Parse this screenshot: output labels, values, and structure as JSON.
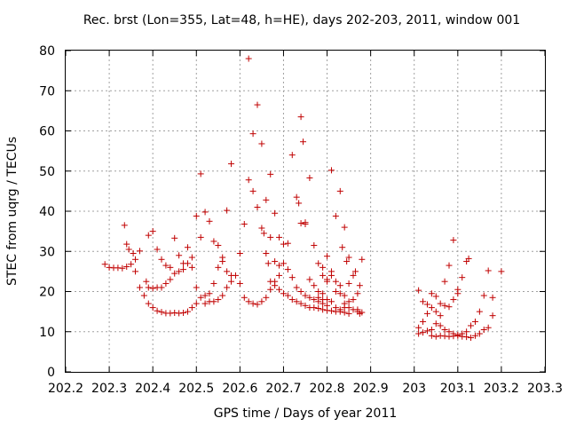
{
  "chart_data": {
    "type": "scatter",
    "title": "Rec. brst (Lon=355, Lat=48, h=HE), days 202-203, 2011, window 001",
    "xlabel": "GPS time / Days of year 2011",
    "ylabel": "STEC from uqrg / TECUs",
    "xlim": [
      202.2,
      203.3
    ],
    "ylim": [
      0,
      80
    ],
    "xticks": [
      "202.2",
      "202.3",
      "202.4",
      "202.5",
      "202.6",
      "202.7",
      "202.8",
      "202.9",
      "203",
      "203.1",
      "203.2",
      "203.3"
    ],
    "yticks": [
      "0",
      "10",
      "20",
      "30",
      "40",
      "50",
      "60",
      "70",
      "80"
    ],
    "grid": true,
    "marker": "plus",
    "color": "#c00000",
    "points": [
      [
        202.29,
        26.8
      ],
      [
        202.3,
        26.0
      ],
      [
        202.31,
        25.9
      ],
      [
        202.32,
        25.9
      ],
      [
        202.33,
        25.8
      ],
      [
        202.34,
        26.2
      ],
      [
        202.35,
        26.8
      ],
      [
        202.36,
        28.0
      ],
      [
        202.37,
        30.1
      ],
      [
        202.335,
        36.5
      ],
      [
        202.34,
        31.8
      ],
      [
        202.345,
        30.5
      ],
      [
        202.355,
        29.5
      ],
      [
        202.36,
        25.0
      ],
      [
        202.37,
        21.0
      ],
      [
        202.38,
        19.0
      ],
      [
        202.39,
        17.0
      ],
      [
        202.4,
        16.0
      ],
      [
        202.41,
        15.2
      ],
      [
        202.42,
        14.9
      ],
      [
        202.43,
        14.6
      ],
      [
        202.44,
        14.6
      ],
      [
        202.45,
        14.7
      ],
      [
        202.46,
        14.6
      ],
      [
        202.47,
        14.7
      ],
      [
        202.48,
        15.0
      ],
      [
        202.49,
        16.0
      ],
      [
        202.5,
        17.0
      ],
      [
        202.51,
        18.5
      ],
      [
        202.52,
        19.0
      ],
      [
        202.385,
        22.5
      ],
      [
        202.39,
        21.0
      ],
      [
        202.4,
        20.8
      ],
      [
        202.41,
        21.0
      ],
      [
        202.42,
        21.0
      ],
      [
        202.43,
        22.0
      ],
      [
        202.44,
        23.0
      ],
      [
        202.45,
        24.5
      ],
      [
        202.46,
        25.0
      ],
      [
        202.47,
        25.5
      ],
      [
        202.48,
        27.0
      ],
      [
        202.49,
        28.5
      ],
      [
        202.5,
        38.8
      ],
      [
        202.51,
        49.3
      ],
      [
        202.39,
        34.0
      ],
      [
        202.4,
        35.0
      ],
      [
        202.41,
        30.5
      ],
      [
        202.42,
        28.0
      ],
      [
        202.43,
        26.5
      ],
      [
        202.44,
        26.0
      ],
      [
        202.45,
        33.3
      ],
      [
        202.46,
        29.0
      ],
      [
        202.47,
        27.0
      ],
      [
        202.48,
        31.0
      ],
      [
        202.49,
        26.0
      ],
      [
        202.5,
        21.0
      ],
      [
        202.51,
        33.5
      ],
      [
        202.52,
        39.8
      ],
      [
        202.53,
        37.5
      ],
      [
        202.54,
        32.5
      ],
      [
        202.55,
        31.5
      ],
      [
        202.56,
        28.5
      ],
      [
        202.57,
        40.2
      ],
      [
        202.58,
        51.8
      ],
      [
        202.52,
        17.0
      ],
      [
        202.53,
        17.5
      ],
      [
        202.54,
        17.5
      ],
      [
        202.55,
        18.0
      ],
      [
        202.56,
        19.0
      ],
      [
        202.57,
        21.0
      ],
      [
        202.58,
        22.5
      ],
      [
        202.59,
        24.0
      ],
      [
        202.6,
        29.5
      ],
      [
        202.61,
        36.8
      ],
      [
        202.62,
        78.0
      ],
      [
        202.63,
        59.3
      ],
      [
        202.64,
        66.5
      ],
      [
        202.65,
        56.8
      ],
      [
        202.53,
        19.5
      ],
      [
        202.54,
        22.0
      ],
      [
        202.55,
        26.0
      ],
      [
        202.56,
        27.5
      ],
      [
        202.57,
        25.0
      ],
      [
        202.58,
        24.0
      ],
      [
        202.6,
        22.0
      ],
      [
        202.61,
        18.5
      ],
      [
        202.62,
        17.5
      ],
      [
        202.63,
        17.0
      ],
      [
        202.64,
        16.8
      ],
      [
        202.65,
        17.5
      ],
      [
        202.66,
        18.5
      ],
      [
        202.67,
        20.5
      ],
      [
        202.68,
        22.5
      ],
      [
        202.69,
        24.0
      ],
      [
        202.62,
        47.8
      ],
      [
        202.63,
        45.0
      ],
      [
        202.64,
        41.0
      ],
      [
        202.65,
        35.8
      ],
      [
        202.655,
        34.5
      ],
      [
        202.66,
        42.8
      ],
      [
        202.67,
        49.2
      ],
      [
        202.68,
        39.5
      ],
      [
        202.69,
        33.5
      ],
      [
        202.7,
        31.8
      ],
      [
        202.71,
        32.0
      ],
      [
        202.72,
        54.0
      ],
      [
        202.73,
        43.5
      ],
      [
        202.735,
        42.0
      ],
      [
        202.74,
        63.5
      ],
      [
        202.745,
        57.3
      ],
      [
        202.75,
        37.2
      ],
      [
        202.66,
        29.5
      ],
      [
        202.665,
        27.0
      ],
      [
        202.67,
        33.5
      ],
      [
        202.68,
        27.5
      ],
      [
        202.69,
        26.5
      ],
      [
        202.7,
        27.0
      ],
      [
        202.71,
        25.5
      ],
      [
        202.72,
        23.5
      ],
      [
        202.73,
        21.0
      ],
      [
        202.74,
        20.0
      ],
      [
        202.75,
        19.0
      ],
      [
        202.76,
        18.5
      ],
      [
        202.77,
        18.0
      ],
      [
        202.78,
        17.5
      ],
      [
        202.79,
        17.0
      ],
      [
        202.8,
        16.5
      ],
      [
        202.67,
        22.5
      ],
      [
        202.68,
        21.5
      ],
      [
        202.69,
        20.5
      ],
      [
        202.7,
        19.5
      ],
      [
        202.71,
        19.0
      ],
      [
        202.72,
        18.0
      ],
      [
        202.73,
        17.5
      ],
      [
        202.74,
        17.0
      ],
      [
        202.75,
        16.5
      ],
      [
        202.76,
        16.0
      ],
      [
        202.77,
        16.0
      ],
      [
        202.78,
        15.8
      ],
      [
        202.79,
        15.5
      ],
      [
        202.8,
        15.3
      ],
      [
        202.81,
        15.2
      ],
      [
        202.82,
        15.0
      ],
      [
        202.83,
        15.0
      ],
      [
        202.84,
        14.8
      ],
      [
        202.85,
        14.5
      ],
      [
        202.74,
        37.0
      ],
      [
        202.75,
        36.8
      ],
      [
        202.76,
        48.3
      ],
      [
        202.77,
        31.5
      ],
      [
        202.78,
        27.0
      ],
      [
        202.79,
        26.0
      ],
      [
        202.8,
        28.8
      ],
      [
        202.81,
        50.2
      ],
      [
        202.82,
        38.8
      ],
      [
        202.83,
        45.0
      ],
      [
        202.835,
        31.0
      ],
      [
        202.84,
        36.0
      ],
      [
        202.845,
        27.5
      ],
      [
        202.85,
        28.5
      ],
      [
        202.76,
        23.0
      ],
      [
        202.77,
        21.5
      ],
      [
        202.78,
        20.0
      ],
      [
        202.79,
        19.5
      ],
      [
        202.8,
        22.5
      ],
      [
        202.81,
        24.0
      ],
      [
        202.82,
        20.0
      ],
      [
        202.83,
        19.5
      ],
      [
        202.84,
        17.0
      ],
      [
        202.85,
        16.0
      ],
      [
        202.86,
        15.5
      ],
      [
        202.87,
        15.0
      ],
      [
        202.78,
        18.5
      ],
      [
        202.79,
        18.0
      ],
      [
        202.8,
        18.0
      ],
      [
        202.81,
        17.5
      ],
      [
        202.82,
        16.0
      ],
      [
        202.83,
        15.5
      ],
      [
        202.84,
        16.0
      ],
      [
        202.85,
        17.5
      ],
      [
        202.86,
        18.0
      ],
      [
        202.87,
        19.5
      ],
      [
        202.875,
        21.5
      ],
      [
        202.88,
        28.0
      ],
      [
        202.79,
        24.0
      ],
      [
        202.8,
        23.0
      ],
      [
        202.81,
        25.0
      ],
      [
        202.82,
        22.5
      ],
      [
        202.83,
        21.5
      ],
      [
        202.84,
        19.0
      ],
      [
        202.85,
        22.0
      ],
      [
        202.86,
        24.0
      ],
      [
        202.865,
        25.0
      ],
      [
        202.87,
        15.5
      ],
      [
        202.875,
        14.5
      ],
      [
        202.88,
        14.8
      ],
      [
        203.01,
        20.3
      ],
      [
        203.02,
        17.5
      ],
      [
        203.03,
        16.8
      ],
      [
        203.04,
        19.5
      ],
      [
        203.05,
        18.8
      ],
      [
        203.06,
        17.0
      ],
      [
        203.07,
        16.5
      ],
      [
        203.08,
        16.2
      ],
      [
        203.09,
        18.0
      ],
      [
        203.1,
        19.5
      ],
      [
        203.11,
        23.5
      ],
      [
        203.12,
        27.5
      ],
      [
        203.125,
        28.2
      ],
      [
        203.01,
        11.0
      ],
      [
        203.02,
        12.5
      ],
      [
        203.03,
        14.5
      ],
      [
        203.04,
        16.0
      ],
      [
        203.05,
        15.0
      ],
      [
        203.06,
        14.0
      ],
      [
        203.07,
        22.5
      ],
      [
        203.08,
        26.5
      ],
      [
        203.09,
        32.8
      ],
      [
        203.1,
        20.5
      ],
      [
        203.01,
        9.5
      ],
      [
        203.02,
        9.8
      ],
      [
        203.03,
        10.2
      ],
      [
        203.04,
        10.5
      ],
      [
        203.05,
        12.0
      ],
      [
        203.06,
        11.5
      ],
      [
        203.07,
        10.5
      ],
      [
        203.08,
        10.0
      ],
      [
        203.09,
        9.5
      ],
      [
        203.1,
        9.0
      ],
      [
        203.11,
        8.8
      ],
      [
        203.12,
        8.7
      ],
      [
        203.13,
        8.5
      ],
      [
        203.14,
        9.0
      ],
      [
        203.15,
        9.5
      ],
      [
        203.16,
        10.5
      ],
      [
        203.17,
        11.0
      ],
      [
        203.18,
        14.0
      ],
      [
        203.04,
        9.0
      ],
      [
        203.05,
        8.8
      ],
      [
        203.06,
        9.0
      ],
      [
        203.07,
        8.9
      ],
      [
        203.08,
        8.8
      ],
      [
        203.09,
        8.9
      ],
      [
        203.1,
        9.2
      ],
      [
        203.11,
        9.5
      ],
      [
        203.12,
        10.0
      ],
      [
        203.13,
        11.5
      ],
      [
        203.14,
        12.5
      ],
      [
        203.15,
        15.0
      ],
      [
        203.16,
        19.0
      ],
      [
        203.17,
        25.2
      ],
      [
        203.18,
        18.5
      ],
      [
        203.2,
        25.0
      ]
    ]
  }
}
